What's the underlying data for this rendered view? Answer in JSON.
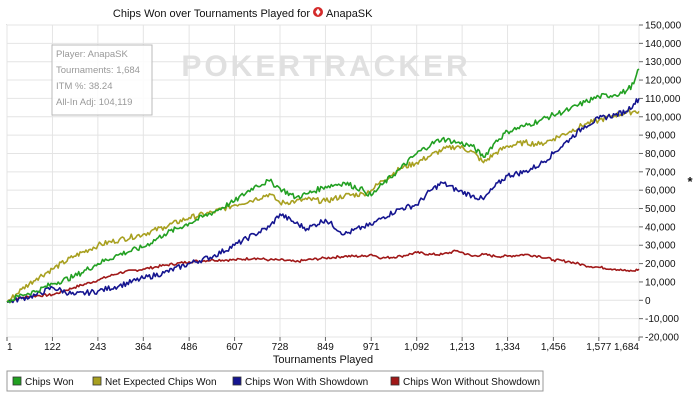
{
  "chart_data": {
    "type": "line",
    "title_prefix": "Chips Won over Tournaments Played for",
    "player_name": "AnapaSK",
    "watermark": "POKERTRACKER",
    "xlabel": "Tournaments Played",
    "ylabel": "*",
    "xlim": [
      1,
      1684
    ],
    "ylim": [
      -20000,
      150000
    ],
    "x_ticks": [
      1,
      122,
      243,
      364,
      486,
      607,
      728,
      849,
      971,
      1092,
      1213,
      1334,
      1456,
      1577,
      1684
    ],
    "x_tick_labels": [
      "1",
      "122",
      "243",
      "364",
      "486",
      "607",
      "728",
      "849",
      "971",
      "1,092",
      "1,213",
      "1,334",
      "1,456",
      "1,577",
      "1,684"
    ],
    "y_ticks": [
      -20000,
      -10000,
      0,
      10000,
      20000,
      30000,
      40000,
      50000,
      60000,
      70000,
      80000,
      90000,
      100000,
      110000,
      120000,
      130000,
      140000,
      150000
    ],
    "y_tick_labels": [
      "-20,000",
      "-10,000",
      "0",
      "10,000",
      "20,000",
      "30,000",
      "40,000",
      "50,000",
      "60,000",
      "70,000",
      "80,000",
      "90,000",
      "100,000",
      "110,000",
      "120,000",
      "130,000",
      "140,000",
      "150,000"
    ],
    "grid": true,
    "legend_position": "bottom",
    "info_box": [
      "Player: AnapaSK",
      "Tournaments: 1,684",
      "ITM %: 38.24",
      "All-In Adj: 104,119"
    ],
    "series": [
      {
        "name": "Chips Won",
        "color": "#22a022",
        "x": [
          1,
          40,
          80,
          122,
          180,
          243,
          300,
          364,
          420,
          486,
          550,
          607,
          660,
          700,
          728,
          770,
          800,
          849,
          900,
          950,
          971,
          1000,
          1050,
          1092,
          1130,
          1160,
          1200,
          1240,
          1270,
          1300,
          1334,
          1380,
          1420,
          1456,
          1500,
          1540,
          1577,
          1620,
          1650,
          1670,
          1684
        ],
        "y": [
          -1000,
          3000,
          5000,
          9000,
          13000,
          20000,
          25000,
          29000,
          36000,
          42000,
          48000,
          54000,
          62000,
          65000,
          61000,
          56000,
          58000,
          62000,
          64000,
          60000,
          57000,
          63000,
          72000,
          80000,
          85000,
          88000,
          86000,
          84000,
          78000,
          86000,
          92000,
          95000,
          98000,
          101000,
          104000,
          108000,
          111000,
          112000,
          114000,
          118000,
          126000
        ]
      },
      {
        "name": "Net Expected Chips Won",
        "color": "#a8a020",
        "x": [
          1,
          40,
          80,
          122,
          180,
          243,
          300,
          364,
          420,
          486,
          550,
          607,
          660,
          700,
          728,
          770,
          800,
          849,
          900,
          950,
          971,
          1000,
          1050,
          1092,
          1130,
          1160,
          1200,
          1240,
          1270,
          1300,
          1334,
          1380,
          1420,
          1456,
          1500,
          1540,
          1577,
          1620,
          1650,
          1670,
          1684
        ],
        "y": [
          -1000,
          6000,
          12000,
          17000,
          24000,
          30000,
          33000,
          36000,
          40000,
          45000,
          48000,
          52000,
          55000,
          58000,
          53000,
          54000,
          55000,
          54000,
          57000,
          58000,
          60000,
          65000,
          72000,
          75000,
          79000,
          82000,
          84000,
          81000,
          75000,
          80000,
          84000,
          86000,
          85000,
          88000,
          92000,
          96000,
          98000,
          101000,
          102000,
          103000,
          103000
        ]
      },
      {
        "name": "Chips Won With Showdown",
        "color": "#151590",
        "x": [
          1,
          40,
          80,
          122,
          180,
          243,
          300,
          364,
          420,
          486,
          550,
          607,
          660,
          700,
          728,
          770,
          800,
          849,
          900,
          950,
          971,
          1000,
          1050,
          1092,
          1130,
          1160,
          1200,
          1240,
          1270,
          1300,
          1334,
          1380,
          1420,
          1456,
          1500,
          1540,
          1577,
          1620,
          1650,
          1670,
          1684
        ],
        "y": [
          -1000,
          1000,
          3000,
          7000,
          3000,
          5000,
          8000,
          12000,
          15000,
          20000,
          24000,
          30000,
          36000,
          40000,
          47000,
          42000,
          39000,
          44000,
          36000,
          40000,
          41000,
          45000,
          50000,
          52000,
          60000,
          64000,
          60000,
          57000,
          55000,
          62000,
          68000,
          70000,
          74000,
          80000,
          88000,
          95000,
          99000,
          101000,
          103000,
          107000,
          110000
        ]
      },
      {
        "name": "Chips Won Without Showdown",
        "color": "#a01818",
        "x": [
          1,
          40,
          80,
          122,
          180,
          243,
          300,
          364,
          420,
          486,
          550,
          607,
          660,
          700,
          728,
          770,
          800,
          849,
          900,
          950,
          971,
          1000,
          1050,
          1092,
          1130,
          1160,
          1200,
          1240,
          1270,
          1300,
          1334,
          1380,
          1420,
          1456,
          1500,
          1540,
          1577,
          1620,
          1650,
          1670,
          1684
        ],
        "y": [
          -1000,
          1500,
          2500,
          3000,
          7000,
          11000,
          15000,
          17000,
          19000,
          21000,
          22000,
          22000,
          23000,
          22000,
          22000,
          21000,
          22000,
          23000,
          24000,
          24000,
          25000,
          23000,
          24000,
          26000,
          25000,
          25000,
          27000,
          24000,
          25000,
          24000,
          24000,
          25000,
          24000,
          22000,
          21000,
          19000,
          18000,
          17000,
          16000,
          16000,
          17000
        ]
      }
    ]
  }
}
